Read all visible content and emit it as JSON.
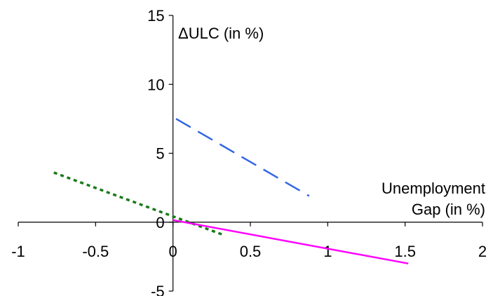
{
  "chart_data": {
    "type": "line",
    "title": "",
    "ylabel": "ΔULC (in %)",
    "xlabel_lines": [
      "Unemployment",
      "Gap (in %)"
    ],
    "xlim": [
      -1,
      2
    ],
    "ylim": [
      -5,
      15
    ],
    "x_ticks": [
      -1,
      -0.5,
      0,
      0.5,
      1,
      1.5,
      2
    ],
    "x_tick_labels": [
      "-1",
      "-0.5",
      "0",
      "0.5",
      "1",
      "1.5",
      "2"
    ],
    "y_ticks": [
      -5,
      0,
      5,
      10,
      15
    ],
    "y_tick_labels": [
      "-5",
      "0",
      "5",
      "10",
      "15"
    ],
    "grid": false,
    "legend": "none",
    "series": [
      {
        "style": "dashed",
        "color": "#3366e6",
        "points": [
          [
            0.02,
            7.5
          ],
          [
            0.88,
            1.9
          ]
        ]
      },
      {
        "style": "dotted",
        "color": "#1a7a1a",
        "points": [
          [
            -0.77,
            3.6
          ],
          [
            0.32,
            -0.9
          ]
        ]
      },
      {
        "style": "solid",
        "color": "#ff00ff",
        "points": [
          [
            0.0,
            0.15
          ],
          [
            1.52,
            -3.0
          ]
        ]
      }
    ]
  }
}
